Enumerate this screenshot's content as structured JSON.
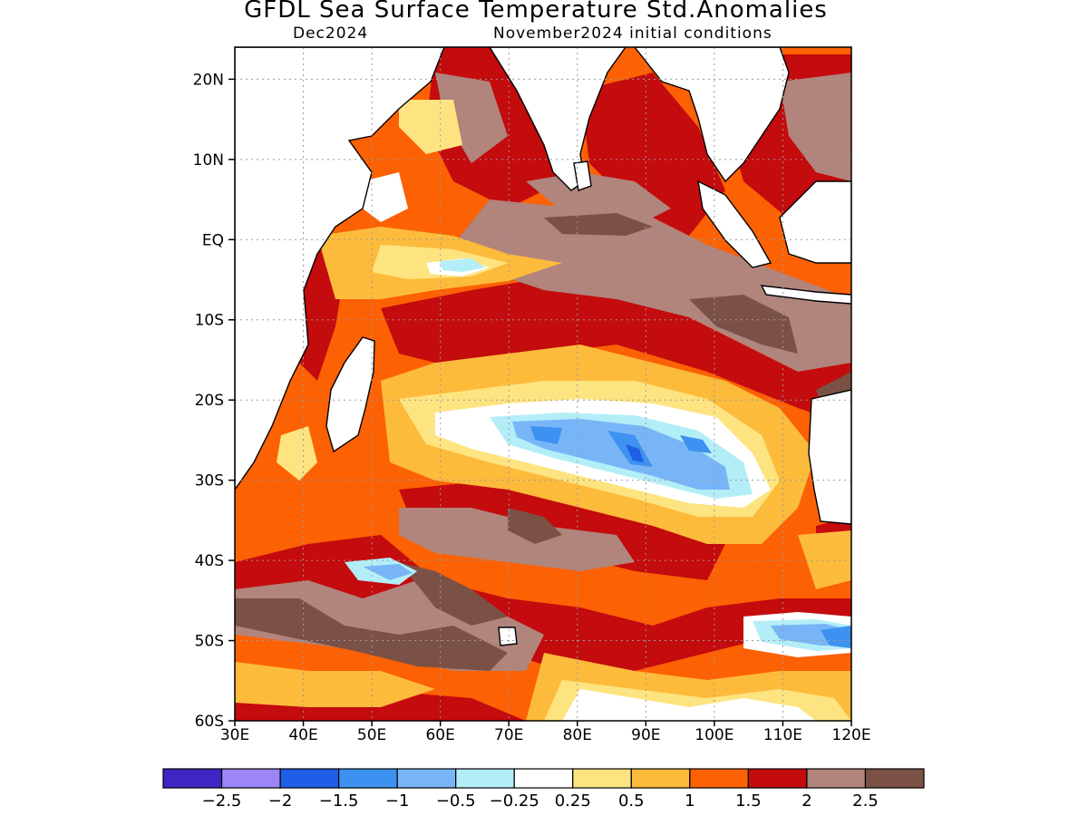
{
  "title": "GFDL Sea Surface Temperature Std.Anomalies",
  "subtitle_left": "Dec2024",
  "subtitle_right": "November2024 initial conditions",
  "map": {
    "lon_range": [
      30,
      120
    ],
    "lat_range": [
      -60,
      24
    ],
    "lat_ticks": [
      {
        "value": 20,
        "label": "20N"
      },
      {
        "value": 10,
        "label": "10N"
      },
      {
        "value": 0,
        "label": "EQ"
      },
      {
        "value": -10,
        "label": "10S"
      },
      {
        "value": -20,
        "label": "20S"
      },
      {
        "value": -30,
        "label": "30S"
      },
      {
        "value": -40,
        "label": "40S"
      },
      {
        "value": -50,
        "label": "50S"
      },
      {
        "value": -60,
        "label": "60S"
      }
    ],
    "lon_ticks": [
      {
        "value": 30,
        "label": "30E"
      },
      {
        "value": 40,
        "label": "40E"
      },
      {
        "value": 50,
        "label": "50E"
      },
      {
        "value": 60,
        "label": "60E"
      },
      {
        "value": 70,
        "label": "70E"
      },
      {
        "value": 80,
        "label": "80E"
      },
      {
        "value": 90,
        "label": "90E"
      },
      {
        "value": 100,
        "label": "100E"
      },
      {
        "value": 110,
        "label": "110E"
      },
      {
        "value": 120,
        "label": "120E"
      }
    ],
    "grid": true
  },
  "colorbar": {
    "colors": [
      "#3f25c2",
      "#9c85f5",
      "#1f5ee6",
      "#3d91f0",
      "#78b5f7",
      "#b3eef8",
      "#ffffff",
      "#fee481",
      "#fdbb3c",
      "#fc6104",
      "#c40b0d",
      "#b1847c",
      "#7b5146"
    ],
    "labels": [
      "−2.5",
      "−2",
      "−1.5",
      "−1",
      "−0.5",
      "−0.25",
      "0.25",
      "0.5",
      "1",
      "1.5",
      "2",
      "2.5"
    ]
  }
}
